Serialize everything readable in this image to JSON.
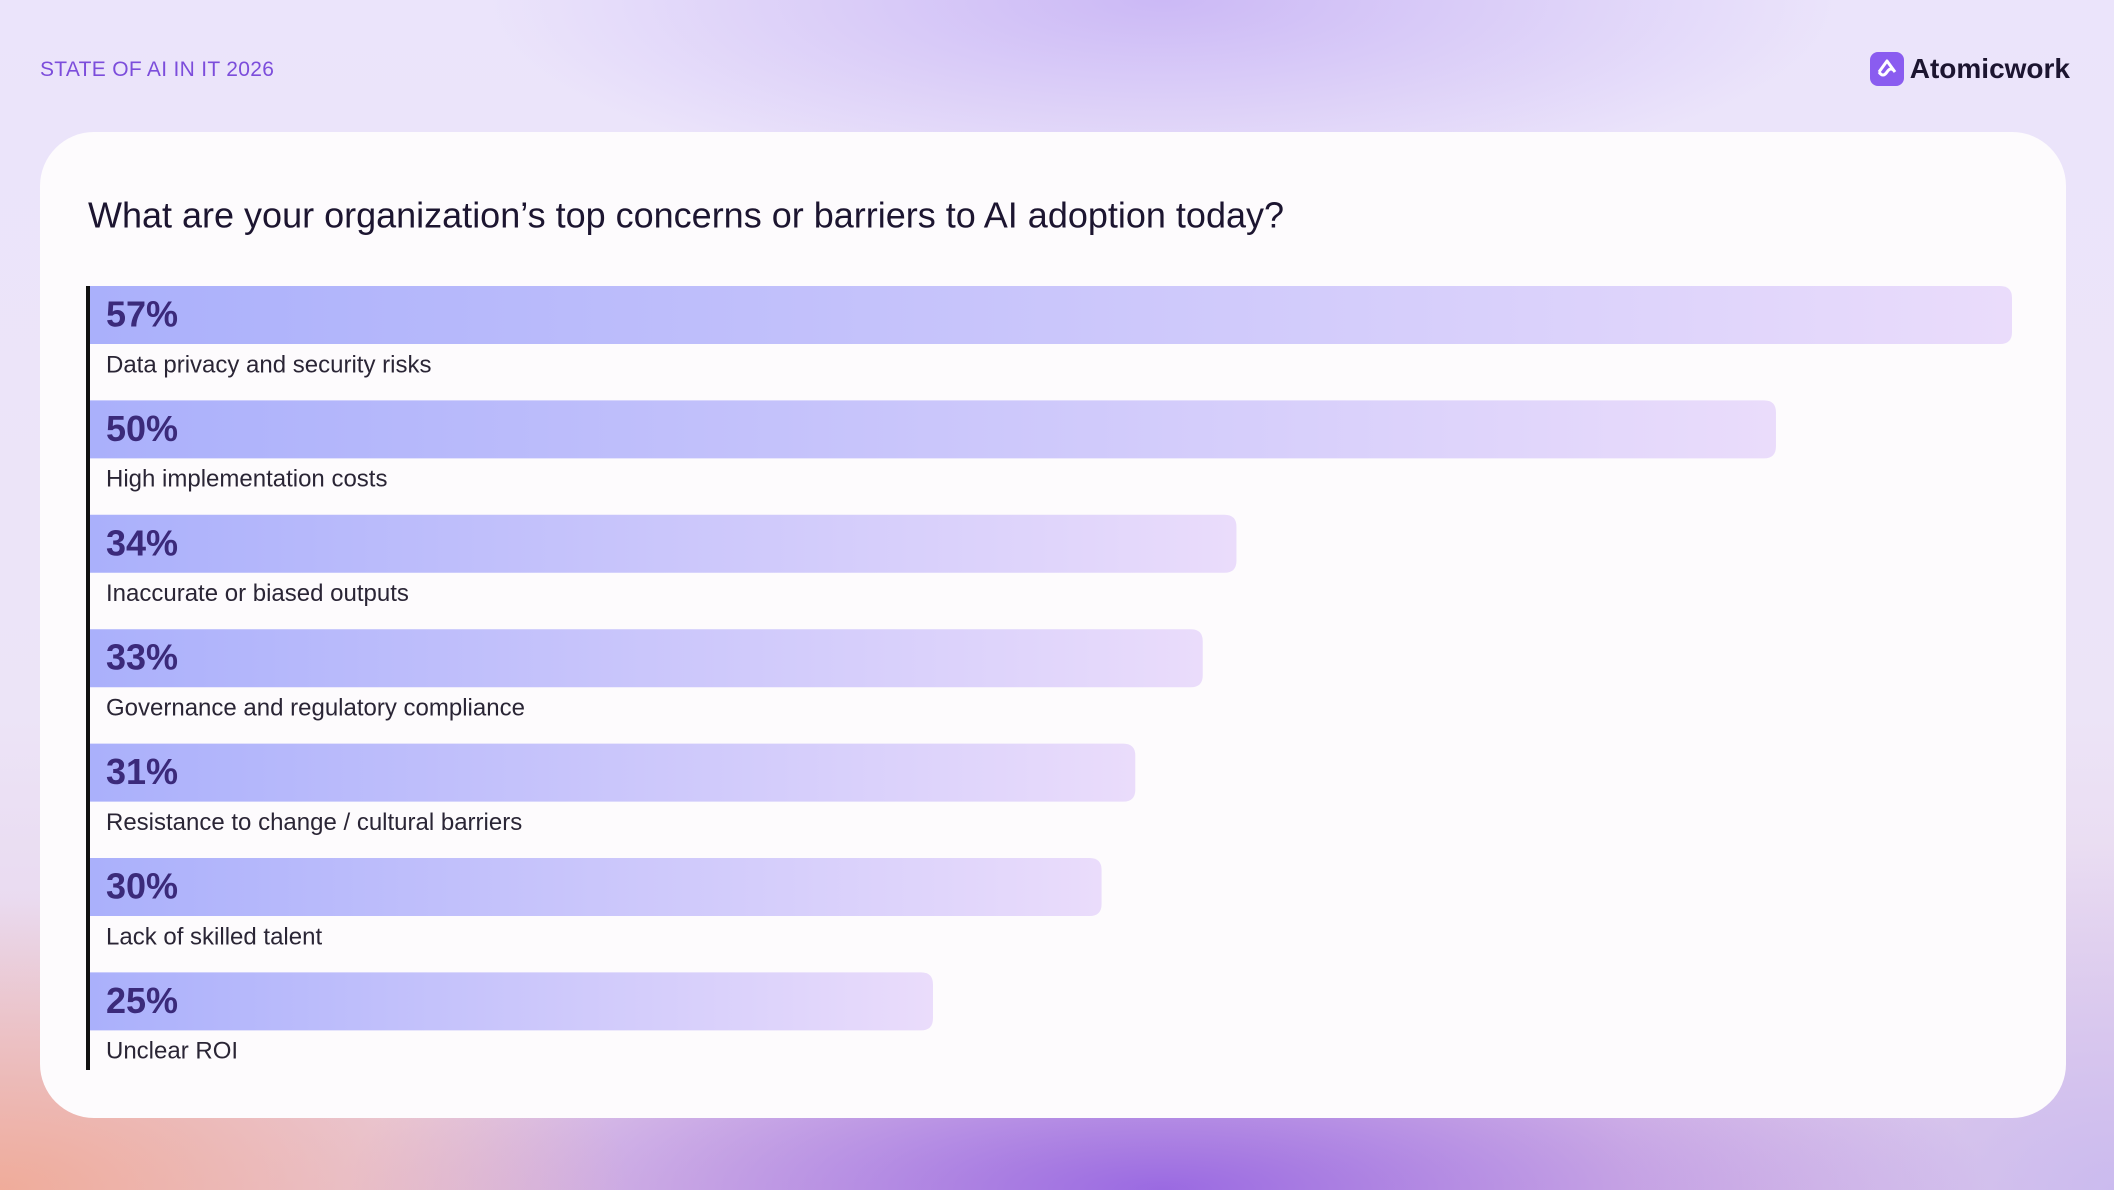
{
  "header": {
    "eyebrow": "STATE OF AI IN IT 2026",
    "brand": "Atomicwork"
  },
  "chart_data": {
    "type": "bar",
    "orientation": "horizontal",
    "title": "What are your organization’s top concerns or barriers to AI adoption today?",
    "categories": [
      "Data privacy and security risks",
      "High implementation costs",
      "Inaccurate or biased outputs",
      "Governance and regulatory compliance",
      "Resistance to change / cultural barriers",
      "Lack of skilled talent",
      "Unclear ROI"
    ],
    "values": [
      57,
      50,
      34,
      33,
      31,
      30,
      25
    ],
    "value_labels": [
      "57%",
      "50%",
      "34%",
      "33%",
      "31%",
      "30%",
      "25%"
    ],
    "color": "#aab0fb"
  }
}
